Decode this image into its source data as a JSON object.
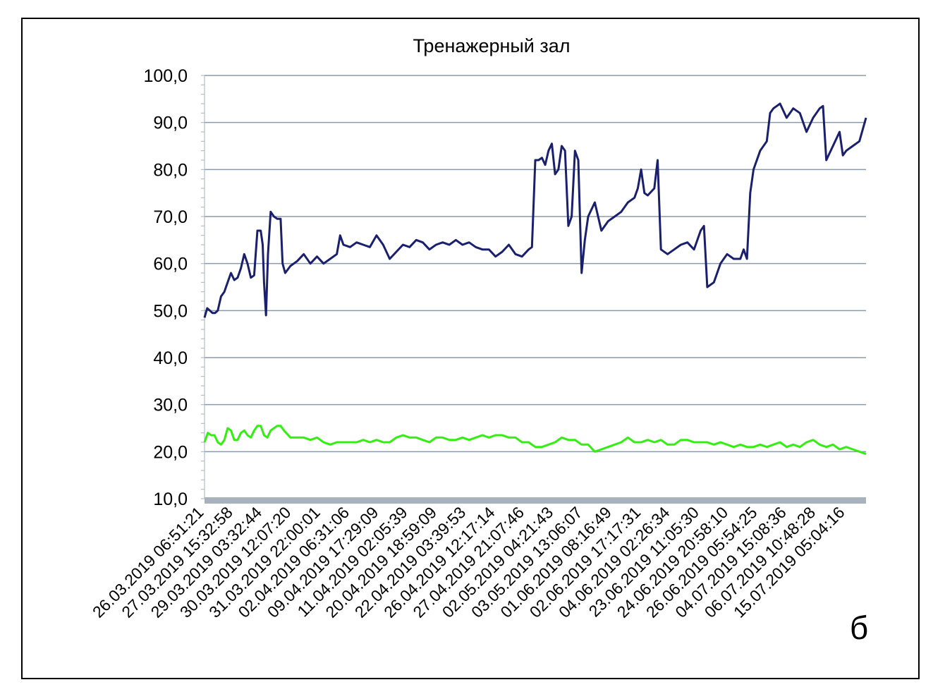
{
  "chart_data": {
    "type": "line",
    "title": "Тренажерный зал",
    "xlabel": "",
    "ylabel": "",
    "ylim": [
      10,
      100
    ],
    "yticks": [
      "10,0",
      "20,0",
      "30,0",
      "40,0",
      "50,0",
      "60,0",
      "70,0",
      "80,0",
      "90,0",
      "100,0"
    ],
    "xticks": [
      "26.03.2019 06:51:21",
      "27.03.2019 15:32:58",
      "29.03.2019 03:32:44",
      "30.03.2019 12:07:20",
      "31.03.2019 22:00:01",
      "02.04.2019 06:31:06",
      "09.04.2019 17:29:09",
      "11.04.2019 02:05:39",
      "20.04.2019 18:59:09",
      "22.04.2019 03:39:53",
      "26.04.2019 12:17:14",
      "27.04.2019 21:07:46",
      "02.05.2019 04:21:43",
      "03.05.2019 13:06:07",
      "01.06.2019 08:16:49",
      "02.06.2019 17:17:31",
      "04.06.2019 02:26:34",
      "23.06.2019 11:05:30",
      "24.06.2019 20:58:10",
      "26.06.2019 05:54:25",
      "04.07.2019 15:08:36",
      "06.07.2019 10:48:28",
      "15.07.2019 05:04:16"
    ],
    "grid": true,
    "series": [
      {
        "color": "#1a1f6e",
        "points": [
          [
            0.0,
            48.5
          ],
          [
            0.004,
            50.5
          ],
          [
            0.008,
            50.0
          ],
          [
            0.012,
            49.5
          ],
          [
            0.016,
            49.5
          ],
          [
            0.02,
            50.0
          ],
          [
            0.025,
            53.0
          ],
          [
            0.03,
            54.0
          ],
          [
            0.035,
            56.0
          ],
          [
            0.04,
            58.0
          ],
          [
            0.045,
            56.5
          ],
          [
            0.05,
            57.0
          ],
          [
            0.055,
            59.0
          ],
          [
            0.06,
            62.0
          ],
          [
            0.065,
            60.0
          ],
          [
            0.07,
            57.0
          ],
          [
            0.075,
            57.5
          ],
          [
            0.08,
            67.0
          ],
          [
            0.085,
            67.0
          ],
          [
            0.088,
            64.0
          ],
          [
            0.09,
            56.0
          ],
          [
            0.093,
            49.0
          ],
          [
            0.096,
            62.0
          ],
          [
            0.1,
            71.0
          ],
          [
            0.105,
            70.0
          ],
          [
            0.11,
            69.5
          ],
          [
            0.115,
            69.5
          ],
          [
            0.118,
            60.0
          ],
          [
            0.122,
            58.0
          ],
          [
            0.13,
            59.5
          ],
          [
            0.14,
            60.5
          ],
          [
            0.15,
            62.0
          ],
          [
            0.16,
            60.0
          ],
          [
            0.17,
            61.5
          ],
          [
            0.18,
            60.0
          ],
          [
            0.19,
            61.0
          ],
          [
            0.2,
            62.0
          ],
          [
            0.205,
            66.0
          ],
          [
            0.21,
            64.0
          ],
          [
            0.22,
            63.5
          ],
          [
            0.23,
            64.5
          ],
          [
            0.24,
            64.0
          ],
          [
            0.25,
            63.5
          ],
          [
            0.26,
            66.0
          ],
          [
            0.27,
            64.0
          ],
          [
            0.28,
            61.0
          ],
          [
            0.29,
            62.5
          ],
          [
            0.3,
            64.0
          ],
          [
            0.31,
            63.5
          ],
          [
            0.32,
            65.0
          ],
          [
            0.33,
            64.5
          ],
          [
            0.34,
            63.0
          ],
          [
            0.35,
            64.0
          ],
          [
            0.36,
            64.5
          ],
          [
            0.37,
            64.0
          ],
          [
            0.38,
            65.0
          ],
          [
            0.39,
            64.0
          ],
          [
            0.4,
            64.5
          ],
          [
            0.41,
            63.5
          ],
          [
            0.42,
            63.0
          ],
          [
            0.43,
            63.0
          ],
          [
            0.44,
            61.5
          ],
          [
            0.45,
            62.5
          ],
          [
            0.46,
            64.0
          ],
          [
            0.47,
            62.0
          ],
          [
            0.48,
            61.5
          ],
          [
            0.49,
            63.0
          ],
          [
            0.495,
            63.5
          ],
          [
            0.5,
            82.0
          ],
          [
            0.505,
            82.0
          ],
          [
            0.51,
            82.5
          ],
          [
            0.515,
            81.0
          ],
          [
            0.52,
            84.0
          ],
          [
            0.525,
            85.5
          ],
          [
            0.53,
            79.0
          ],
          [
            0.535,
            80.0
          ],
          [
            0.54,
            85.0
          ],
          [
            0.545,
            84.0
          ],
          [
            0.55,
            68.0
          ],
          [
            0.555,
            70.0
          ],
          [
            0.56,
            84.0
          ],
          [
            0.565,
            82.0
          ],
          [
            0.57,
            58.0
          ],
          [
            0.575,
            65.0
          ],
          [
            0.58,
            70.0
          ],
          [
            0.59,
            73.0
          ],
          [
            0.6,
            67.0
          ],
          [
            0.61,
            69.0
          ],
          [
            0.62,
            70.0
          ],
          [
            0.63,
            71.0
          ],
          [
            0.64,
            73.0
          ],
          [
            0.65,
            74.0
          ],
          [
            0.655,
            76.0
          ],
          [
            0.66,
            80.0
          ],
          [
            0.665,
            75.0
          ],
          [
            0.67,
            74.5
          ],
          [
            0.68,
            76.0
          ],
          [
            0.685,
            82.0
          ],
          [
            0.69,
            63.0
          ],
          [
            0.7,
            62.0
          ],
          [
            0.71,
            63.0
          ],
          [
            0.72,
            64.0
          ],
          [
            0.73,
            64.5
          ],
          [
            0.74,
            63.0
          ],
          [
            0.75,
            67.0
          ],
          [
            0.755,
            68.0
          ],
          [
            0.76,
            55.0
          ],
          [
            0.77,
            56.0
          ],
          [
            0.78,
            60.0
          ],
          [
            0.79,
            62.0
          ],
          [
            0.8,
            61.0
          ],
          [
            0.81,
            61.0
          ],
          [
            0.815,
            63.0
          ],
          [
            0.82,
            61.0
          ],
          [
            0.825,
            75.0
          ],
          [
            0.83,
            80.0
          ],
          [
            0.84,
            84.0
          ],
          [
            0.85,
            86.0
          ],
          [
            0.855,
            92.0
          ],
          [
            0.86,
            93.0
          ],
          [
            0.87,
            94.0
          ],
          [
            0.88,
            91.0
          ],
          [
            0.89,
            93.0
          ],
          [
            0.9,
            92.0
          ],
          [
            0.91,
            88.0
          ],
          [
            0.92,
            91.0
          ],
          [
            0.93,
            93.0
          ],
          [
            0.935,
            93.5
          ],
          [
            0.94,
            82.0
          ],
          [
            0.95,
            85.0
          ],
          [
            0.96,
            88.0
          ],
          [
            0.965,
            83.0
          ],
          [
            0.97,
            84.0
          ],
          [
            0.98,
            85.0
          ],
          [
            0.99,
            86.0
          ],
          [
            1.0,
            91.0
          ]
        ]
      },
      {
        "color": "#33ee11",
        "points": [
          [
            0.0,
            22.0
          ],
          [
            0.005,
            24.0
          ],
          [
            0.01,
            23.5
          ],
          [
            0.015,
            23.5
          ],
          [
            0.02,
            22.0
          ],
          [
            0.025,
            21.5
          ],
          [
            0.03,
            22.5
          ],
          [
            0.035,
            25.0
          ],
          [
            0.04,
            24.5
          ],
          [
            0.045,
            22.5
          ],
          [
            0.05,
            22.5
          ],
          [
            0.055,
            24.0
          ],
          [
            0.06,
            24.5
          ],
          [
            0.065,
            23.5
          ],
          [
            0.07,
            23.0
          ],
          [
            0.075,
            24.5
          ],
          [
            0.08,
            25.5
          ],
          [
            0.085,
            25.5
          ],
          [
            0.09,
            23.5
          ],
          [
            0.095,
            23.0
          ],
          [
            0.1,
            24.5
          ],
          [
            0.105,
            25.0
          ],
          [
            0.11,
            25.5
          ],
          [
            0.115,
            25.5
          ],
          [
            0.12,
            24.5
          ],
          [
            0.13,
            23.0
          ],
          [
            0.14,
            23.0
          ],
          [
            0.15,
            23.0
          ],
          [
            0.16,
            22.5
          ],
          [
            0.17,
            23.0
          ],
          [
            0.18,
            22.0
          ],
          [
            0.19,
            21.5
          ],
          [
            0.2,
            22.0
          ],
          [
            0.21,
            22.0
          ],
          [
            0.22,
            22.0
          ],
          [
            0.23,
            22.0
          ],
          [
            0.24,
            22.5
          ],
          [
            0.25,
            22.0
          ],
          [
            0.26,
            22.5
          ],
          [
            0.27,
            22.0
          ],
          [
            0.28,
            22.0
          ],
          [
            0.29,
            23.0
          ],
          [
            0.3,
            23.5
          ],
          [
            0.31,
            23.0
          ],
          [
            0.32,
            23.0
          ],
          [
            0.33,
            22.5
          ],
          [
            0.34,
            22.0
          ],
          [
            0.35,
            23.0
          ],
          [
            0.36,
            23.0
          ],
          [
            0.37,
            22.5
          ],
          [
            0.38,
            22.5
          ],
          [
            0.39,
            23.0
          ],
          [
            0.4,
            22.5
          ],
          [
            0.41,
            23.0
          ],
          [
            0.42,
            23.5
          ],
          [
            0.43,
            23.0
          ],
          [
            0.44,
            23.5
          ],
          [
            0.45,
            23.5
          ],
          [
            0.46,
            23.0
          ],
          [
            0.47,
            23.0
          ],
          [
            0.48,
            22.0
          ],
          [
            0.49,
            22.0
          ],
          [
            0.5,
            21.0
          ],
          [
            0.51,
            21.0
          ],
          [
            0.52,
            21.5
          ],
          [
            0.53,
            22.0
          ],
          [
            0.54,
            23.0
          ],
          [
            0.55,
            22.5
          ],
          [
            0.56,
            22.5
          ],
          [
            0.57,
            21.5
          ],
          [
            0.58,
            21.5
          ],
          [
            0.59,
            20.0
          ],
          [
            0.6,
            20.5
          ],
          [
            0.61,
            21.0
          ],
          [
            0.62,
            21.5
          ],
          [
            0.63,
            22.0
          ],
          [
            0.64,
            23.0
          ],
          [
            0.65,
            22.0
          ],
          [
            0.66,
            22.0
          ],
          [
            0.67,
            22.5
          ],
          [
            0.68,
            22.0
          ],
          [
            0.69,
            22.5
          ],
          [
            0.7,
            21.5
          ],
          [
            0.71,
            21.5
          ],
          [
            0.72,
            22.5
          ],
          [
            0.73,
            22.5
          ],
          [
            0.74,
            22.0
          ],
          [
            0.75,
            22.0
          ],
          [
            0.76,
            22.0
          ],
          [
            0.77,
            21.5
          ],
          [
            0.78,
            22.0
          ],
          [
            0.79,
            21.5
          ],
          [
            0.8,
            21.0
          ],
          [
            0.81,
            21.5
          ],
          [
            0.82,
            21.0
          ],
          [
            0.83,
            21.0
          ],
          [
            0.84,
            21.5
          ],
          [
            0.85,
            21.0
          ],
          [
            0.86,
            21.5
          ],
          [
            0.87,
            22.0
          ],
          [
            0.88,
            21.0
          ],
          [
            0.89,
            21.5
          ],
          [
            0.9,
            21.0
          ],
          [
            0.91,
            22.0
          ],
          [
            0.92,
            22.5
          ],
          [
            0.93,
            21.5
          ],
          [
            0.94,
            21.0
          ],
          [
            0.95,
            21.5
          ],
          [
            0.96,
            20.5
          ],
          [
            0.97,
            21.0
          ],
          [
            0.98,
            20.5
          ],
          [
            0.99,
            20.0
          ],
          [
            1.0,
            19.5
          ]
        ]
      }
    ]
  },
  "panel_label": "б",
  "colors": {
    "grid": "#8a9aa8",
    "axis": "#a7b2bc",
    "frame": "#000000"
  }
}
